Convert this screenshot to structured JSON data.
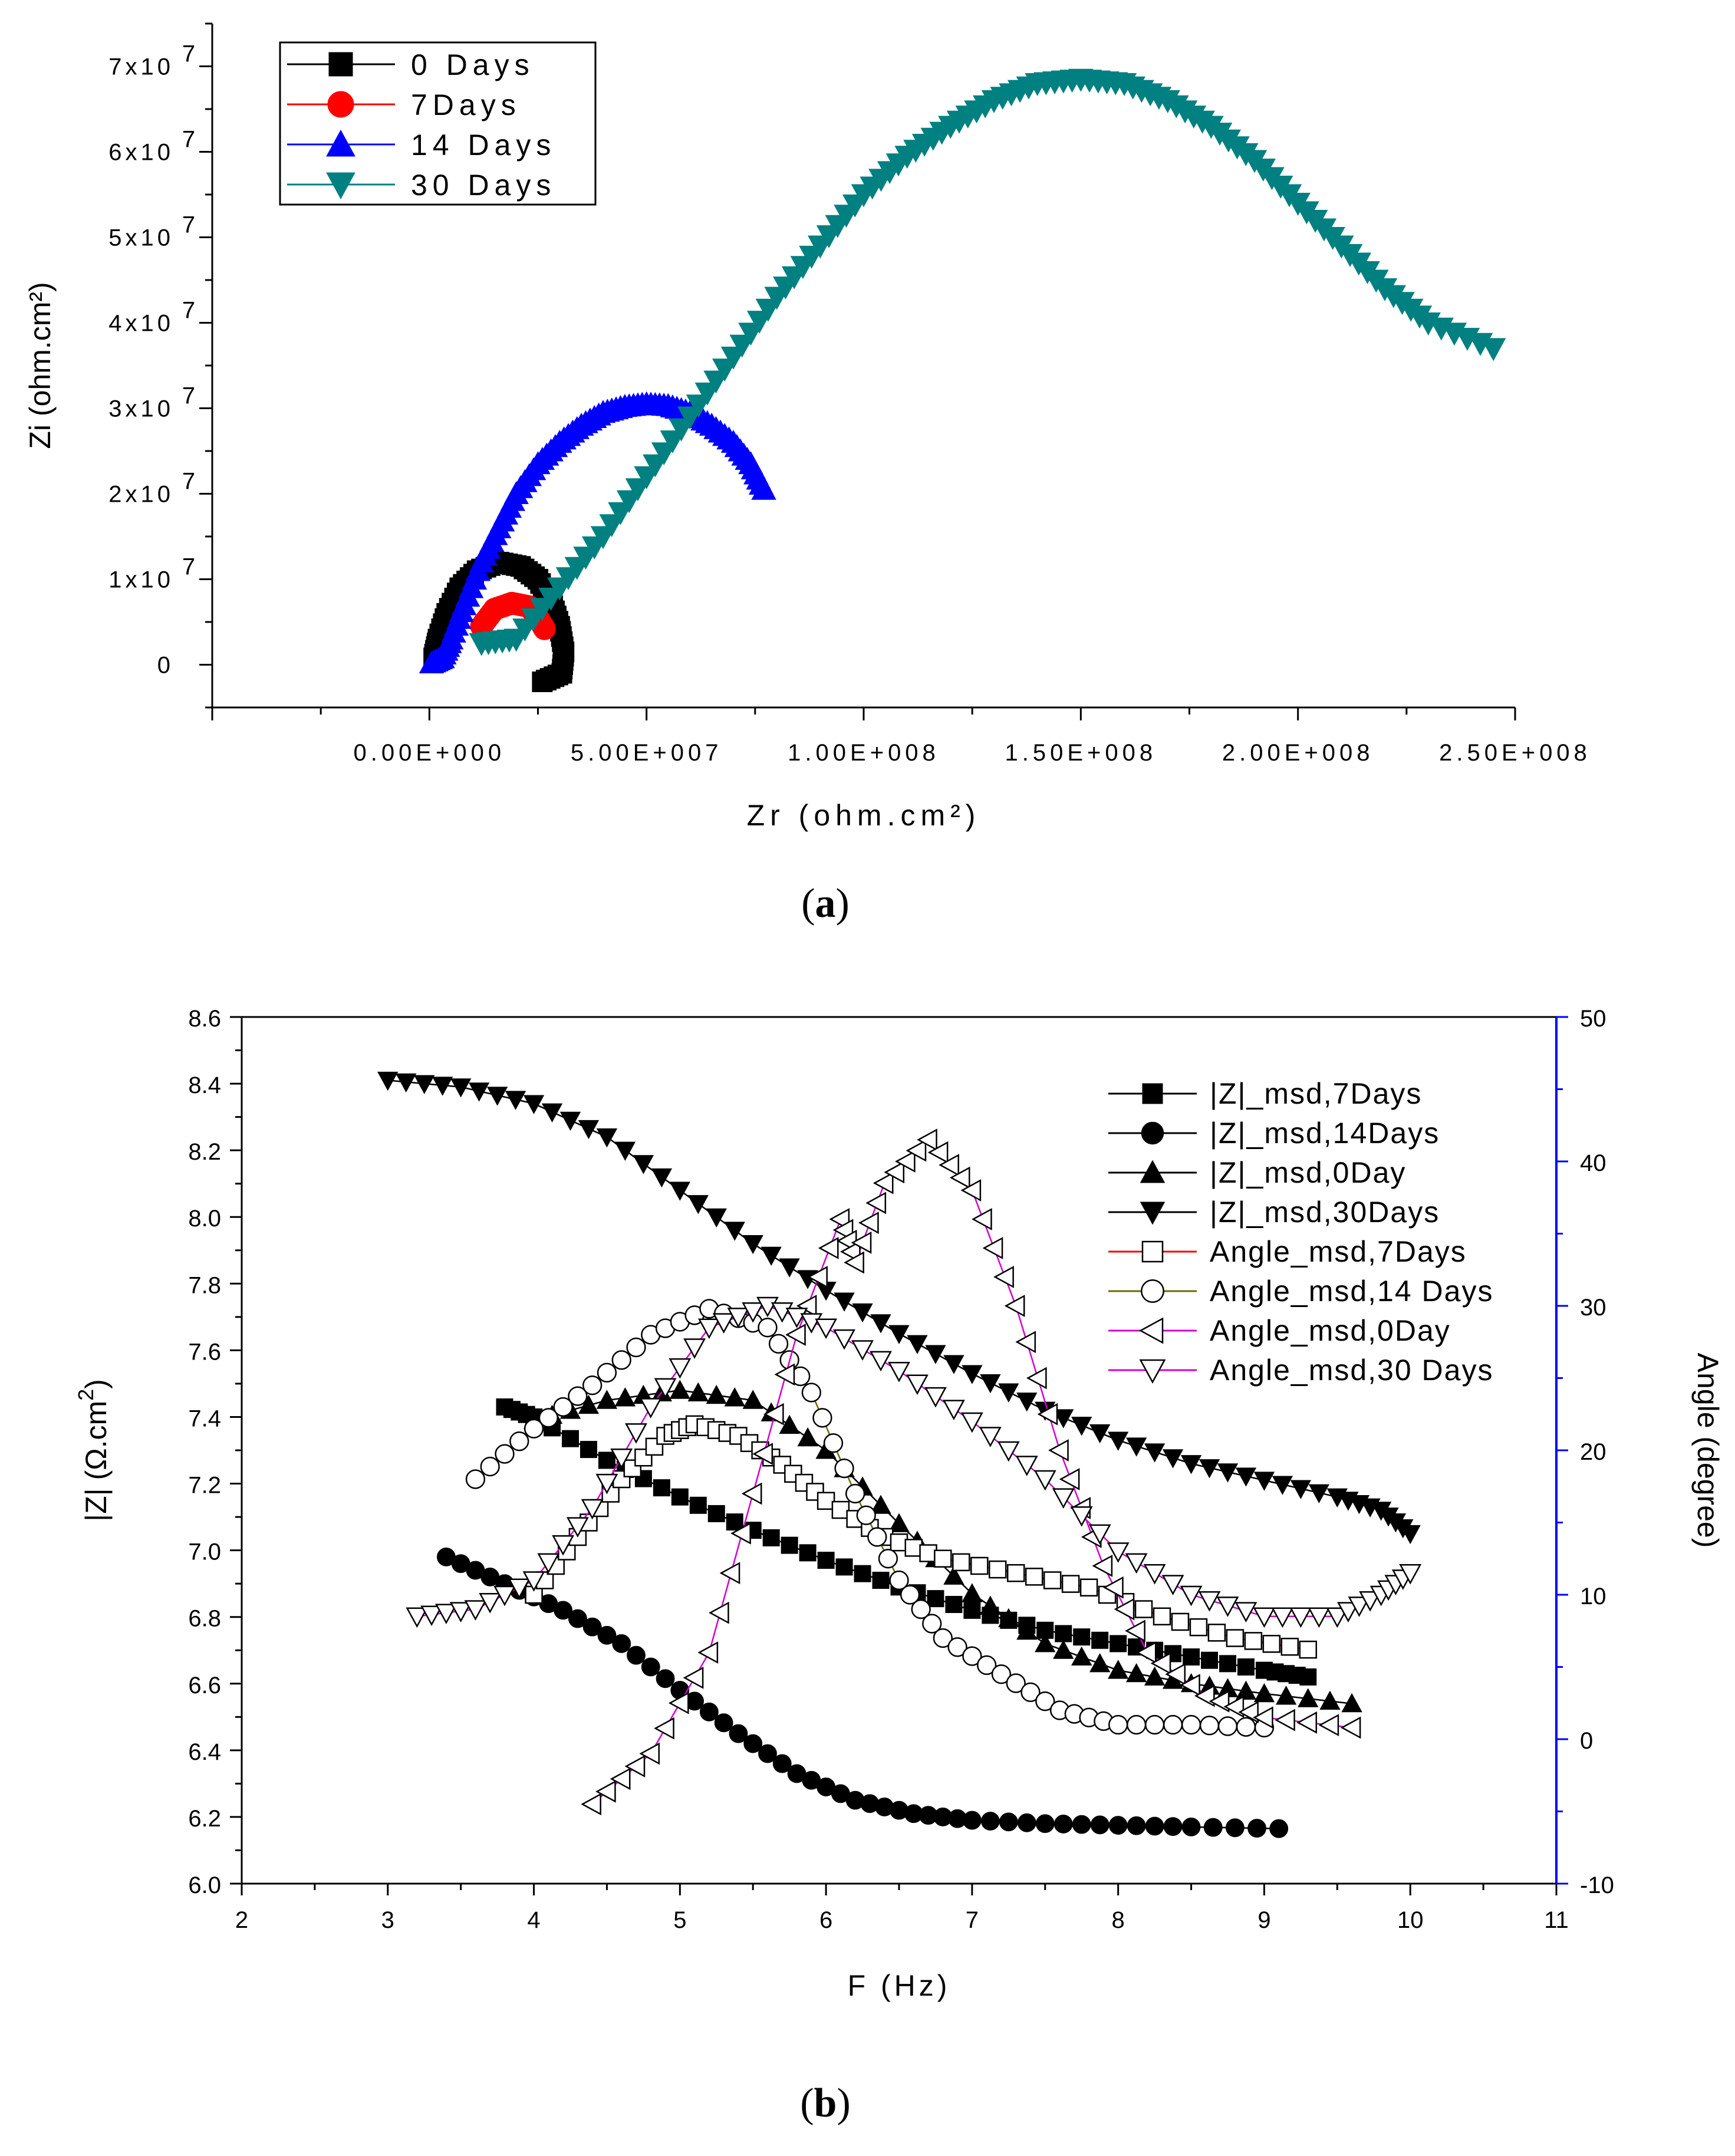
{
  "chart_data": [
    {
      "type": "scatter",
      "panel_label": "a",
      "xlabel": "Zr (ohm.cm²)",
      "ylabel": "Zi (ohm.cm²)",
      "xlim": [
        -50000000.0,
        250000000.0
      ],
      "ylim": [
        -5000000.0,
        75000000.0
      ],
      "x_ticks": [
        {
          "value": 0,
          "label": "0.00E+000"
        },
        {
          "value": 50000000.0,
          "label": "5.00E+007"
        },
        {
          "value": 100000000.0,
          "label": "1.00E+008"
        },
        {
          "value": 150000000.0,
          "label": "1.50E+008"
        },
        {
          "value": 200000000.0,
          "label": "2.00E+008"
        },
        {
          "value": 250000000.0,
          "label": "2.50E+008"
        }
      ],
      "y_ticks": [
        {
          "value": 0,
          "label": "0"
        },
        {
          "value": 10000000.0,
          "label": "1x10",
          "exp": "7"
        },
        {
          "value": 20000000.0,
          "label": "2x10",
          "exp": "7"
        },
        {
          "value": 30000000.0,
          "label": "3x10",
          "exp": "7"
        },
        {
          "value": 40000000.0,
          "label": "4x10",
          "exp": "7"
        },
        {
          "value": 50000000.0,
          "label": "5x10",
          "exp": "7"
        },
        {
          "value": 60000000.0,
          "label": "6x10",
          "exp": "7"
        },
        {
          "value": 70000000.0,
          "label": "7x10",
          "exp": "7"
        }
      ],
      "legend_position": "top-left",
      "series": [
        {
          "name": "0 Days",
          "color": "#000000",
          "marker": "square",
          "filled": true,
          "points": [
            [
              1000000.0,
              800000.0
            ],
            [
              2000000.0,
              3000000.0
            ],
            [
              4000000.0,
              6000000.0
            ],
            [
              7000000.0,
              9000000.0
            ],
            [
              11000000.0,
              11000000.0
            ],
            [
              16000000.0,
              12000000.0
            ],
            [
              21000000.0,
              11500000.0
            ],
            [
              25000000.0,
              10000000.0
            ],
            [
              28000000.0,
              7500000.0
            ],
            [
              30000000.0,
              4500000.0
            ],
            [
              31000000.0,
              1500000.0
            ],
            [
              30500000.0,
              -1000000.0
            ],
            [
              26000000.0,
              -2000000.0
            ]
          ]
        },
        {
          "name": "7Days",
          "color": "#ff0000",
          "marker": "circle",
          "filled": true,
          "points": [
            [
              12000000.0,
              4500000.0
            ],
            [
              15000000.0,
              6500000.0
            ],
            [
              19000000.0,
              7200000.0
            ],
            [
              23000000.0,
              6800000.0
            ],
            [
              25000000.0,
              5500000.0
            ],
            [
              26500000.0,
              4200000.0
            ]
          ]
        },
        {
          "name": "14 Days",
          "color": "#0000ff",
          "marker": "triangle-up",
          "filled": true,
          "points": [
            [
              500000.0,
              200000.0
            ],
            [
              3000000.0,
              800000.0
            ],
            [
              5000000.0,
              3000000.0
            ],
            [
              8000000.0,
              7000000.0
            ],
            [
              12000000.0,
              12000000.0
            ],
            [
              16000000.0,
              16000000.0
            ],
            [
              20000000.0,
              20000000.0
            ],
            [
              25000000.0,
              23500000.0
            ],
            [
              30000000.0,
              26000000.0
            ],
            [
              35000000.0,
              28000000.0
            ],
            [
              40000000.0,
              29500000.0
            ],
            [
              45000000.0,
              30200000.0
            ],
            [
              50000000.0,
              30500000.0
            ],
            [
              55000000.0,
              30300000.0
            ],
            [
              60000000.0,
              29500000.0
            ],
            [
              65000000.0,
              28000000.0
            ],
            [
              70000000.0,
              26000000.0
            ],
            [
              74000000.0,
              23500000.0
            ],
            [
              77000000.0,
              20500000.0
            ]
          ]
        },
        {
          "name": "30 Days",
          "color": "#008080",
          "marker": "triangle-down",
          "filled": true,
          "points": [
            [
              12000000.0,
              2500000.0
            ],
            [
              20000000.0,
              3000000.0
            ],
            [
              30000000.0,
              9000000.0
            ],
            [
              40000000.0,
              15000000.0
            ],
            [
              50000000.0,
              22000000.0
            ],
            [
              60000000.0,
              29000000.0
            ],
            [
              70000000.0,
              36000000.0
            ],
            [
              80000000.0,
              43000000.0
            ],
            [
              90000000.0,
              49000000.0
            ],
            [
              100000000.0,
              55000000.0
            ],
            [
              110000000.0,
              59500000.0
            ],
            [
              120000000.0,
              63000000.0
            ],
            [
              130000000.0,
              66000000.0
            ],
            [
              140000000.0,
              68000000.0
            ],
            [
              150000000.0,
              68500000.0
            ],
            [
              160000000.0,
              68000000.0
            ],
            [
              170000000.0,
              66000000.0
            ],
            [
              180000000.0,
              63000000.0
            ],
            [
              190000000.0,
              59000000.0
            ],
            [
              200000000.0,
              54000000.0
            ],
            [
              210000000.0,
              49000000.0
            ],
            [
              220000000.0,
              44000000.0
            ],
            [
              230000000.0,
              40000000.0
            ],
            [
              245000000.0,
              37000000.0
            ]
          ]
        }
      ]
    },
    {
      "type": "scatter",
      "panel_label": "b",
      "xlabel": "F (Hz)",
      "ylabel": "|Z| (Ω.cm",
      "ylabel_sup": "2",
      "ylabel_close": ")",
      "y2label": "Angle (degree)",
      "y2label_color": "#0000ff",
      "xlim": [
        2,
        11
      ],
      "ylim": [
        6.0,
        8.6
      ],
      "y2lim": [
        -10,
        50
      ],
      "x_ticks": [
        "2",
        "3",
        "4",
        "5",
        "6",
        "7",
        "8",
        "9",
        "10",
        "11"
      ],
      "y_ticks": [
        "6.0",
        "6.2",
        "6.4",
        "6.6",
        "6.8",
        "7.0",
        "7.2",
        "7.4",
        "7.6",
        "7.8",
        "8.0",
        "8.2",
        "8.4",
        "8.6"
      ],
      "y2_ticks": [
        "-10",
        "0",
        "10",
        "20",
        "30",
        "40",
        "50"
      ],
      "legend_position": "top-right",
      "series": [
        {
          "name": "|Z|_msd,7Days",
          "axis": "left",
          "color": "#000000",
          "marker": "square",
          "filled": true,
          "points": [
            [
              3.8,
              7.43
            ],
            [
              4.0,
              7.4
            ],
            [
              4.5,
              7.27
            ],
            [
              5.0,
              7.16
            ],
            [
              5.5,
              7.06
            ],
            [
              6.0,
              6.97
            ],
            [
              6.5,
              6.89
            ],
            [
              7.0,
              6.82
            ],
            [
              7.5,
              6.76
            ],
            [
              8.0,
              6.72
            ],
            [
              8.5,
              6.68
            ],
            [
              9.0,
              6.64
            ],
            [
              9.3,
              6.62
            ]
          ]
        },
        {
          "name": "|Z|_msd,14Days",
          "axis": "left",
          "color": "#000000",
          "marker": "circle",
          "filled": true,
          "points": [
            [
              3.4,
              6.98
            ],
            [
              3.8,
              6.9
            ],
            [
              4.2,
              6.82
            ],
            [
              4.6,
              6.72
            ],
            [
              5.0,
              6.58
            ],
            [
              5.4,
              6.45
            ],
            [
              5.8,
              6.33
            ],
            [
              6.2,
              6.25
            ],
            [
              6.6,
              6.21
            ],
            [
              7.0,
              6.19
            ],
            [
              7.5,
              6.18
            ],
            [
              8.0,
              6.175
            ],
            [
              8.5,
              6.17
            ],
            [
              9.1,
              6.165
            ]
          ]
        },
        {
          "name": "|Z|_msd,0Day",
          "axis": "left",
          "color": "#000000",
          "marker": "triangle-up",
          "filled": true,
          "points": [
            [
              4.0,
              7.39
            ],
            [
              4.5,
              7.45
            ],
            [
              5.0,
              7.48
            ],
            [
              5.5,
              7.45
            ],
            [
              6.0,
              7.3
            ],
            [
              6.5,
              7.08
            ],
            [
              7.0,
              6.87
            ],
            [
              7.5,
              6.72
            ],
            [
              8.0,
              6.64
            ],
            [
              8.5,
              6.6
            ],
            [
              9.0,
              6.57
            ],
            [
              9.6,
              6.54
            ]
          ]
        },
        {
          "name": "|Z|_msd,30Days",
          "axis": "left",
          "color": "#000000",
          "marker": "triangle-down",
          "filled": true,
          "points": [
            [
              3.0,
              8.41
            ],
            [
              3.5,
              8.39
            ],
            [
              4.0,
              8.34
            ],
            [
              4.5,
              8.24
            ],
            [
              5.0,
              8.08
            ],
            [
              5.5,
              7.92
            ],
            [
              6.0,
              7.78
            ],
            [
              6.5,
              7.65
            ],
            [
              7.0,
              7.53
            ],
            [
              7.5,
              7.42
            ],
            [
              8.0,
              7.33
            ],
            [
              8.5,
              7.26
            ],
            [
              9.0,
              7.21
            ],
            [
              9.5,
              7.16
            ],
            [
              9.8,
              7.12
            ],
            [
              10.0,
              7.05
            ]
          ]
        },
        {
          "name": "Angle_msd,7Days",
          "axis": "right",
          "color": "#ff0000",
          "marker": "square",
          "filled": false,
          "points": [
            [
              4.0,
              10.0
            ],
            [
              4.3,
              14.0
            ],
            [
              4.6,
              18.0
            ],
            [
              4.9,
              21.0
            ],
            [
              5.1,
              21.8
            ],
            [
              5.4,
              21.0
            ],
            [
              5.7,
              19.0
            ],
            [
              6.0,
              16.5
            ],
            [
              6.4,
              14.0
            ],
            [
              6.8,
              12.5
            ],
            [
              7.3,
              11.5
            ],
            [
              7.8,
              10.5
            ],
            [
              8.3,
              8.5
            ],
            [
              8.8,
              7.0
            ],
            [
              9.3,
              6.2
            ]
          ]
        },
        {
          "name": "Angle_msd,14 Days",
          "axis": "right",
          "color": "#6b6b00",
          "marker": "circle",
          "filled": false,
          "points": [
            [
              3.6,
              18.0
            ],
            [
              4.0,
              21.5
            ],
            [
              4.4,
              24.5
            ],
            [
              4.8,
              28.0
            ],
            [
              5.2,
              29.8
            ],
            [
              5.6,
              28.5
            ],
            [
              5.9,
              24.0
            ],
            [
              6.2,
              17.0
            ],
            [
              6.5,
              11.0
            ],
            [
              6.8,
              7.0
            ],
            [
              7.2,
              4.5
            ],
            [
              7.6,
              2.0
            ],
            [
              8.0,
              1.0
            ],
            [
              8.5,
              1.0
            ],
            [
              9.0,
              0.8
            ]
          ]
        },
        {
          "name": "Angle_msd,0Day",
          "axis": "right",
          "color": "#d400d4",
          "marker": "triangle-left",
          "filled": false,
          "points": [
            [
              4.4,
              -4.5
            ],
            [
              4.8,
              -1.0
            ],
            [
              5.2,
              6.0
            ],
            [
              5.5,
              17.0
            ],
            [
              5.8,
              28.0
            ],
            [
              6.1,
              36.0
            ],
            [
              6.2,
              33.0
            ],
            [
              6.4,
              38.5
            ],
            [
              6.7,
              41.5
            ],
            [
              7.0,
              38.0
            ],
            [
              7.3,
              30.0
            ],
            [
              7.6,
              20.0
            ],
            [
              7.9,
              12.0
            ],
            [
              8.2,
              6.0
            ],
            [
              8.6,
              3.0
            ],
            [
              9.0,
              1.5
            ],
            [
              9.6,
              0.8
            ]
          ]
        },
        {
          "name": "Angle_msd,30 Days",
          "axis": "right",
          "color": "#d400d4",
          "marker": "triangle-down",
          "filled": false,
          "points": [
            [
              3.2,
              8.5
            ],
            [
              3.6,
              9.0
            ],
            [
              4.0,
              11.0
            ],
            [
              4.4,
              16.0
            ],
            [
              4.8,
              23.0
            ],
            [
              5.2,
              28.5
            ],
            [
              5.6,
              30.0
            ],
            [
              6.0,
              28.5
            ],
            [
              6.5,
              25.5
            ],
            [
              7.0,
              22.0
            ],
            [
              7.5,
              18.0
            ],
            [
              8.0,
              13.0
            ],
            [
              8.5,
              10.0
            ],
            [
              9.0,
              8.5
            ],
            [
              9.5,
              8.5
            ],
            [
              9.8,
              10.0
            ],
            [
              10.0,
              11.5
            ]
          ]
        }
      ]
    }
  ]
}
